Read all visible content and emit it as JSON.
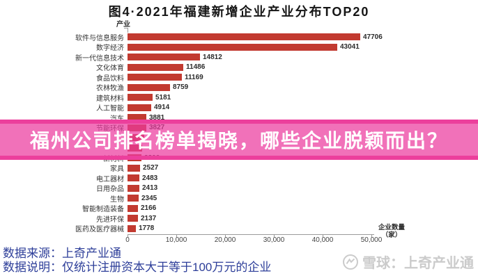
{
  "title": "图4·2021年福建新增企业产业分布TOP20",
  "chart_data": {
    "type": "bar",
    "orientation": "horizontal",
    "title": "图4·2021年福建新增企业产业分布TOP20",
    "y_axis_name": "产业",
    "x_axis_unit_line1": "企业数量",
    "x_axis_unit_line2": "（家）",
    "xlim": [
      0,
      50000
    ],
    "x_ticks": [
      "0",
      "10,000",
      "20,000",
      "30,000",
      "40,000",
      "50,000"
    ],
    "bar_color": "#c23a30",
    "grid": "off",
    "categories": [
      "软件与信息服务",
      "数字经济",
      "新一代信息技术",
      "文化体育",
      "食品饮料",
      "农林牧渔",
      "建筑材料",
      "人工智能",
      "汽车",
      "节能环保",
      "",
      "",
      "新材料",
      "家具",
      "电工器材",
      "日用杂品",
      "生物",
      "智能制造装备",
      "先进环保",
      "医药及医疗器械"
    ],
    "values": [
      47706,
      43041,
      14812,
      11486,
      11169,
      8759,
      5181,
      4914,
      3881,
      3827,
      3400,
      3000,
      2806,
      2527,
      2483,
      2413,
      2345,
      2166,
      2137,
      1778
    ],
    "value_labels": [
      "47706",
      "43041",
      "14812",
      "11486",
      "11169",
      "8759",
      "5181",
      "4914",
      "3881",
      "3827",
      "",
      "",
      "2806",
      "2527",
      "2483",
      "2413",
      "2345",
      "2166",
      "2137",
      "1778"
    ],
    "obscured_row_indices": [
      9,
      10,
      11
    ]
  },
  "banner": {
    "text": "福州公司排名榜单揭晓，哪些企业脱颖而出？",
    "body_color": "rgba(236,58,158,0.72)",
    "border_color": "#ec3f9c",
    "text_color": "#ffffff"
  },
  "footer": {
    "source_line": "数据来源：上奇产业通",
    "note_line": "数据说明：仅统计注册资本大于等于100万元的企业"
  },
  "watermark": {
    "brand_text": "雪球：上奇产业通",
    "logo": "xueqiu-circle-logo",
    "color": "#cbcbcb"
  }
}
